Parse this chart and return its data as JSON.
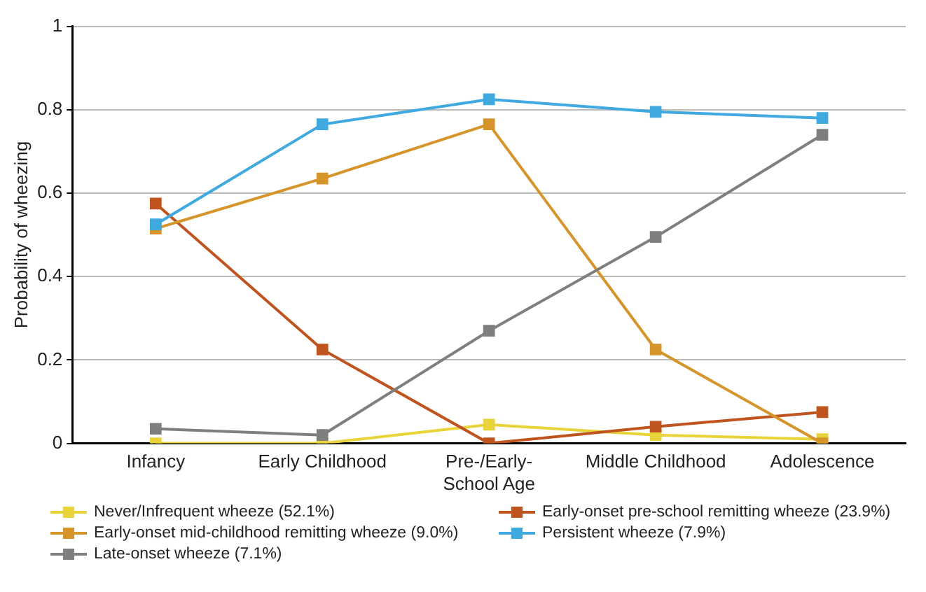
{
  "chart_data": {
    "type": "line",
    "ylabel": "Probability of wheezing",
    "categories": [
      "Infancy",
      "Early Childhood",
      "Pre-/Early-School Age",
      "Middle Childhood",
      "Adolescence"
    ],
    "series": [
      {
        "name": "Never/Infrequent wheeze (52.1%)",
        "color": "#e8d43a",
        "values": [
          0,
          0,
          0.045,
          0.02,
          0.01
        ]
      },
      {
        "name": "Early-onset pre-school remitting wheeze (23.9%)",
        "color": "#c0541f",
        "values": [
          0.575,
          0.225,
          0,
          0.04,
          0.075
        ]
      },
      {
        "name": "Early-onset mid-childhood remitting wheeze (9.0%)",
        "color": "#d6952a",
        "values": [
          0.515,
          0.635,
          0.765,
          0.225,
          0
        ]
      },
      {
        "name": "Persistent wheeze (7.9%)",
        "color": "#3fa9e0",
        "values": [
          0.525,
          0.765,
          0.825,
          0.795,
          0.78
        ]
      },
      {
        "name": "Late-onset wheeze (7.1%)",
        "color": "#7f7f7f",
        "values": [
          0.035,
          0.02,
          0.27,
          0.495,
          0.74
        ]
      }
    ],
    "ylim": [
      0,
      1
    ],
    "yticks": [
      0,
      0.2,
      0.4,
      0.6,
      0.8,
      1
    ],
    "grid": "y",
    "legend": "bottom",
    "marker": "square",
    "line_style": "solid"
  }
}
